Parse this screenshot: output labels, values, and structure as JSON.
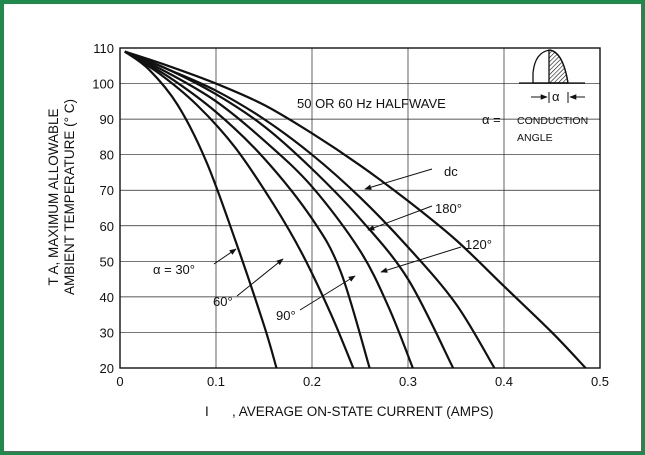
{
  "chart_data": {
    "type": "line",
    "title": "",
    "xlabel_prefix": "I",
    "xlabel": ", AVERAGE ON-STATE CURRENT (AMPS)",
    "ylabel_line1": "T A, MAXIMUM ALLOWABLE",
    "ylabel_line2": "AMBIENT TEMPERATURE (° C)",
    "xlim": [
      0,
      0.5
    ],
    "ylim": [
      20,
      110
    ],
    "x_ticks": [
      0,
      0.1,
      0.2,
      0.3,
      0.4,
      0.5
    ],
    "x_tick_labels": [
      "0",
      "0.1",
      "0.2",
      "0.3",
      "0.4",
      "0.5"
    ],
    "y_ticks": [
      20,
      30,
      40,
      50,
      60,
      70,
      80,
      90,
      100,
      110
    ],
    "y_tick_labels": [
      "20",
      "30",
      "40",
      "50",
      "60",
      "70",
      "80",
      "90",
      "100",
      "110"
    ],
    "grid": true,
    "series": [
      {
        "name": "α = 30°",
        "points": [
          [
            0.005,
            109
          ],
          [
            0.03,
            104
          ],
          [
            0.06,
            94
          ],
          [
            0.09,
            78
          ],
          [
            0.12,
            56
          ],
          [
            0.15,
            32
          ],
          [
            0.163,
            20
          ]
        ]
      },
      {
        "name": "60°",
        "points": [
          [
            0.005,
            109
          ],
          [
            0.04,
            103
          ],
          [
            0.08,
            94
          ],
          [
            0.12,
            82
          ],
          [
            0.16,
            66
          ],
          [
            0.19,
            52
          ],
          [
            0.22,
            35
          ],
          [
            0.243,
            20
          ]
        ]
      },
      {
        "name": "90°",
        "points": [
          [
            0.005,
            109
          ],
          [
            0.05,
            102
          ],
          [
            0.1,
            92
          ],
          [
            0.15,
            79
          ],
          [
            0.2,
            62
          ],
          [
            0.23,
            47
          ],
          [
            0.26,
            20
          ]
        ]
      },
      {
        "name": "120°",
        "points": [
          [
            0.005,
            109
          ],
          [
            0.05,
            103
          ],
          [
            0.1,
            95
          ],
          [
            0.15,
            84
          ],
          [
            0.2,
            71
          ],
          [
            0.25,
            53
          ],
          [
            0.28,
            37
          ],
          [
            0.305,
            20
          ]
        ]
      },
      {
        "name": "180°",
        "points": [
          [
            0.005,
            109
          ],
          [
            0.05,
            104
          ],
          [
            0.1,
            97
          ],
          [
            0.15,
            88
          ],
          [
            0.2,
            76
          ],
          [
            0.25,
            62
          ],
          [
            0.3,
            45
          ],
          [
            0.347,
            20
          ]
        ]
      },
      {
        "name": "",
        "points": [
          [
            0.005,
            109
          ],
          [
            0.05,
            104
          ],
          [
            0.1,
            98
          ],
          [
            0.15,
            90
          ],
          [
            0.2,
            80
          ],
          [
            0.25,
            68
          ],
          [
            0.3,
            54
          ],
          [
            0.35,
            38
          ],
          [
            0.39,
            20
          ]
        ]
      },
      {
        "name": "dc",
        "points": [
          [
            0.005,
            109
          ],
          [
            0.05,
            105
          ],
          [
            0.1,
            100
          ],
          [
            0.15,
            94
          ],
          [
            0.2,
            86
          ],
          [
            0.25,
            77
          ],
          [
            0.3,
            67
          ],
          [
            0.35,
            56
          ],
          [
            0.4,
            43
          ],
          [
            0.45,
            30
          ],
          [
            0.485,
            20
          ]
        ]
      }
    ],
    "annotations": {
      "mode": "50 OR 60 Hz HALFWAVE",
      "alpha_eq": "α =",
      "conduction_line1": "CONDUCTION",
      "conduction_line2": "ANGLE",
      "alpha_symbol": "α",
      "label_dc": "dc",
      "label_180": "180°",
      "label_120": "120°",
      "label_90": "90°",
      "label_60": "60°",
      "label_30": "α = 30°"
    }
  },
  "colors": {
    "border": "#1f8a4c",
    "line": "#111111",
    "grid": "#222222"
  }
}
